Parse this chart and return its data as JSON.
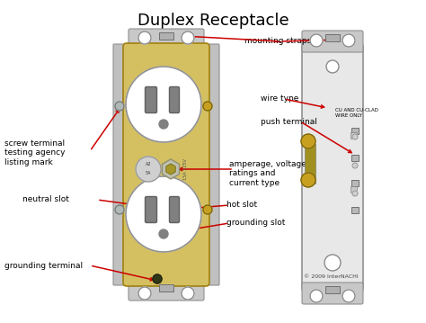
{
  "title": "Duplex Receptacle",
  "title_fontsize": 13,
  "title_fontweight": "normal",
  "background_color": "#ffffff",
  "fig_width": 4.74,
  "fig_height": 3.59,
  "dpi": 100,
  "labels": {
    "mounting_straps": "mounting straps",
    "wire_type": "wire type",
    "push_terminal": "push terminal",
    "screw_terminal": "screw terminal\ntesting agency\nlisting mark",
    "amperage": "amperage, voltage\nratings and\ncurrent type",
    "neutral_slot": "neutral slot",
    "hot_slot": "hot slot",
    "grounding_slot": "grounding slot",
    "grounding_terminal": "grounding terminal",
    "copyright": "© 2009 InterNACHI",
    "wire_label": "CU AND CU-CLAD\nWIRE ONLY"
  },
  "arrow_color": "#cc0000",
  "label_fontsize": 6.5,
  "outlet_body_color": "#d4c060",
  "outlet_face_color": "#f5f3ee",
  "outlet_frame_color": "#c0c0c0",
  "screw_color_gold": "#c8a020",
  "screw_color_silver": "#a0a8a8",
  "back_body_color": "#e0e0e0",
  "back_frame_color": "#b0b0b0",
  "strap_color": "#c8c8c8"
}
